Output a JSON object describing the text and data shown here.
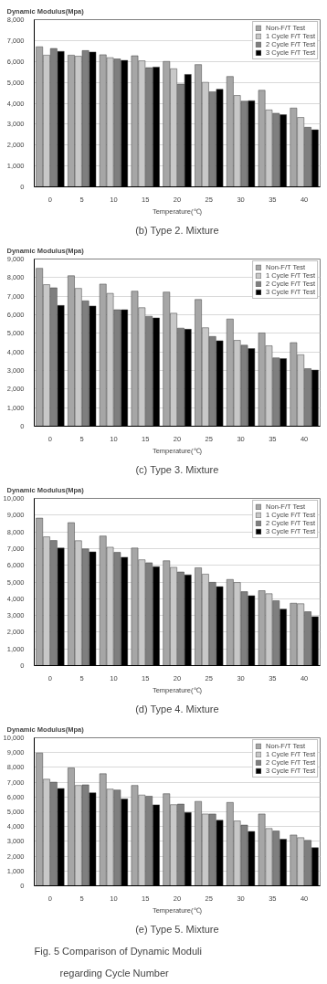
{
  "chart_data": [
    {
      "type": "bar",
      "title": "(b) Type 2. Mixture",
      "ylabel": "Dynamic Modulus(Mpa)",
      "xlabel": "Temperature(℃)",
      "categories": [
        "0",
        "5",
        "10",
        "15",
        "20",
        "25",
        "30",
        "35",
        "40"
      ],
      "ylim": [
        0,
        8000
      ],
      "yticks": [
        0,
        {
          "value": 1000,
          "label": "1,000"
        },
        {
          "value": 2000,
          "label": "2,000"
        },
        {
          "value": 3000,
          "label": "3,000"
        },
        {
          "value": 4000,
          "label": "4,000"
        },
        {
          "value": 5000,
          "label": "5,000"
        },
        {
          "value": 6000,
          "label": "6,000"
        },
        {
          "value": 7000,
          "label": "7,000"
        },
        {
          "value": 8000,
          "label": "8,000"
        }
      ],
      "grid": "y",
      "legend": "top right",
      "series": [
        {
          "name": "Non-F/T Test",
          "color": "#a6a6a6",
          "values": [
            6700,
            6300,
            6320,
            6270,
            6000,
            5850,
            5280,
            4620,
            3770
          ]
        },
        {
          "name": "1 Cycle F/T Test",
          "color": "#c8c8c8",
          "values": [
            6300,
            6250,
            6180,
            6030,
            5650,
            5000,
            4370,
            3680,
            3320
          ]
        },
        {
          "name": "2 Cycle F/T Test",
          "color": "#7f7f7f",
          "values": [
            6620,
            6520,
            6120,
            5700,
            4920,
            4550,
            4100,
            3520,
            2850
          ]
        },
        {
          "name": "3 Cycle F/T Test",
          "color": "#000000",
          "values": [
            6480,
            6450,
            6050,
            5730,
            5380,
            4670,
            4120,
            3450,
            2730
          ]
        }
      ]
    },
    {
      "type": "bar",
      "title": "(c) Type 3. Mixture",
      "ylabel": "Dynamic Modulus(Mpa)",
      "xlabel": "Temperature(℃)",
      "categories": [
        "0",
        "5",
        "10",
        "15",
        "20",
        "25",
        "30",
        "35",
        "40"
      ],
      "ylim": [
        0,
        9000
      ],
      "yticks": [
        0,
        {
          "value": 1000,
          "label": "1,000"
        },
        {
          "value": 2000,
          "label": "2,000"
        },
        {
          "value": 3000,
          "label": "3,000"
        },
        {
          "value": 4000,
          "label": "4,000"
        },
        {
          "value": 5000,
          "label": "5,000"
        },
        {
          "value": 6000,
          "label": "6,000"
        },
        {
          "value": 7000,
          "label": "7,000"
        },
        {
          "value": 8000,
          "label": "8,000"
        },
        {
          "value": 9000,
          "label": "9,000"
        }
      ],
      "grid": "y",
      "legend": "top right",
      "series": [
        {
          "name": "Non-F/T Test",
          "color": "#a6a6a6",
          "values": [
            8500,
            8100,
            7650,
            7270,
            7220,
            6820,
            5770,
            5020,
            4500
          ]
        },
        {
          "name": "1 Cycle F/T Test",
          "color": "#c8c8c8",
          "values": [
            7620,
            7420,
            7150,
            6380,
            6080,
            5300,
            4620,
            4330,
            3850
          ]
        },
        {
          "name": "2 Cycle F/T Test",
          "color": "#7f7f7f",
          "values": [
            7450,
            6750,
            6270,
            5920,
            5280,
            4830,
            4360,
            3680,
            3100
          ]
        },
        {
          "name": "3 Cycle F/T Test",
          "color": "#000000",
          "values": [
            6500,
            6470,
            6270,
            5830,
            5220,
            4600,
            4180,
            3640,
            3020
          ]
        }
      ]
    },
    {
      "type": "bar",
      "title": "(d) Type 4. Mixture",
      "ylabel": "Dynamic Modulus(Mpa)",
      "xlabel": "Temperature(℃)",
      "categories": [
        "0",
        "5",
        "10",
        "15",
        "20",
        "25",
        "30",
        "35",
        "40"
      ],
      "ylim": [
        0,
        10000
      ],
      "yticks": [
        0,
        {
          "value": 1000,
          "label": "1,000"
        },
        {
          "value": 2000,
          "label": "2,000"
        },
        {
          "value": 3000,
          "label": "3,000"
        },
        {
          "value": 4000,
          "label": "4,000"
        },
        {
          "value": 5000,
          "label": "5,000"
        },
        {
          "value": 6000,
          "label": "6,000"
        },
        {
          "value": 7000,
          "label": "7,000"
        },
        {
          "value": 8000,
          "label": "8,000"
        },
        {
          "value": 9000,
          "label": "9,000"
        },
        {
          "value": 10000,
          "label": "10,000"
        }
      ],
      "grid": "y",
      "legend": "top right",
      "series": [
        {
          "name": "Non-F/T Test",
          "color": "#a6a6a6",
          "values": [
            8820,
            8550,
            7750,
            7030,
            6270,
            5850,
            5150,
            4480,
            3730
          ]
        },
        {
          "name": "1 Cycle F/T Test",
          "color": "#c8c8c8",
          "values": [
            7700,
            7470,
            7080,
            6330,
            5880,
            5470,
            4970,
            4300,
            3700
          ]
        },
        {
          "name": "2 Cycle F/T Test",
          "color": "#7f7f7f",
          "values": [
            7480,
            6980,
            6770,
            6150,
            5600,
            4980,
            4420,
            3880,
            3220
          ]
        },
        {
          "name": "3 Cycle F/T Test",
          "color": "#000000",
          "values": [
            7030,
            6800,
            6480,
            5920,
            5430,
            4720,
            4180,
            3380,
            2930
          ]
        }
      ]
    },
    {
      "type": "bar",
      "title": "(e) Type 5. Mixture",
      "ylabel": "Dynamic Modulus(Mpa)",
      "xlabel": "Temperature(℃)",
      "categories": [
        "0",
        "5",
        "10",
        "15",
        "20",
        "25",
        "30",
        "35",
        "40"
      ],
      "ylim": [
        0,
        10000
      ],
      "yticks": [
        0,
        {
          "value": 1000,
          "label": "1,000"
        },
        {
          "value": 2000,
          "label": "2,000"
        },
        {
          "value": 3000,
          "label": "3,000"
        },
        {
          "value": 4000,
          "label": "4,000"
        },
        {
          "value": 5000,
          "label": "5,000"
        },
        {
          "value": 6000,
          "label": "6,000"
        },
        {
          "value": 7000,
          "label": "7,000"
        },
        {
          "value": 8000,
          "label": "8,000"
        },
        {
          "value": 9000,
          "label": "9,000"
        },
        {
          "value": 10000,
          "label": "10,000"
        }
      ],
      "grid": "y",
      "legend": "top right",
      "annotations": [
        "Fig. 5 Comparison of Dynamic Moduli regarding Cycle Number"
      ],
      "series": [
        {
          "name": "Non-F/T Test",
          "color": "#a6a6a6",
          "values": [
            8970,
            7960,
            7570,
            6780,
            6220,
            5700,
            5630,
            4850,
            3430
          ]
        },
        {
          "name": "1 Cycle F/T Test",
          "color": "#c8c8c8",
          "values": [
            7200,
            6780,
            6530,
            6130,
            5480,
            4850,
            4380,
            3870,
            3250
          ]
        },
        {
          "name": "2 Cycle F/T Test",
          "color": "#7f7f7f",
          "values": [
            7000,
            6820,
            6470,
            6050,
            5520,
            4850,
            4100,
            3700,
            3070
          ]
        },
        {
          "name": "3 Cycle F/T Test",
          "color": "#000000",
          "values": [
            6570,
            6280,
            5870,
            5470,
            4950,
            4430,
            3670,
            3150,
            2570
          ]
        }
      ]
    }
  ]
}
